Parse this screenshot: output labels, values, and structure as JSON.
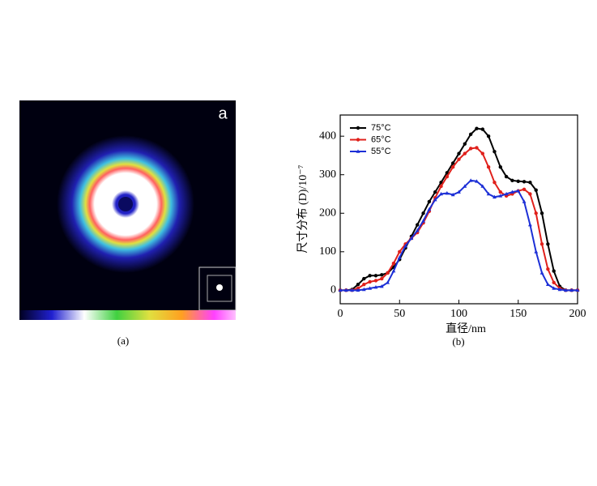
{
  "panel_a": {
    "label": "a",
    "caption": "(a)"
  },
  "chart_data": {
    "type": "line",
    "caption": "(b)",
    "x_label": "直径/nm",
    "y_label": "尺寸分布 (D)/10⁻⁷",
    "x": [
      0,
      5,
      10,
      15,
      20,
      25,
      30,
      35,
      40,
      45,
      50,
      55,
      60,
      65,
      70,
      75,
      80,
      85,
      90,
      95,
      100,
      105,
      110,
      115,
      120,
      125,
      130,
      135,
      140,
      145,
      150,
      155,
      160,
      165,
      170,
      175,
      180,
      185,
      190,
      195,
      200
    ],
    "series": [
      {
        "name": "75°C",
        "color": "#000000",
        "marker": "circle",
        "values": [
          0,
          0,
          2,
          15,
          30,
          38,
          38,
          40,
          45,
          60,
          80,
          110,
          140,
          170,
          200,
          230,
          255,
          280,
          305,
          330,
          355,
          380,
          405,
          420,
          418,
          400,
          360,
          320,
          295,
          285,
          283,
          282,
          280,
          260,
          200,
          120,
          50,
          10,
          0,
          0,
          0
        ]
      },
      {
        "name": "65°C",
        "color": "#e0201b",
        "marker": "circle",
        "values": [
          0,
          0,
          0,
          5,
          15,
          22,
          25,
          30,
          45,
          70,
          100,
          120,
          135,
          150,
          175,
          205,
          240,
          270,
          295,
          320,
          340,
          355,
          368,
          370,
          355,
          320,
          280,
          255,
          245,
          250,
          258,
          262,
          250,
          200,
          120,
          55,
          20,
          5,
          0,
          0,
          0
        ]
      },
      {
        "name": "55°C",
        "color": "#1c2fd6",
        "marker": "triangle",
        "values": [
          0,
          0,
          0,
          0,
          2,
          5,
          8,
          10,
          20,
          50,
          85,
          115,
          135,
          155,
          180,
          210,
          235,
          250,
          252,
          248,
          255,
          270,
          285,
          283,
          270,
          250,
          242,
          245,
          250,
          255,
          258,
          230,
          170,
          100,
          45,
          15,
          5,
          2,
          0,
          0,
          0
        ]
      }
    ],
    "xlim": [
      0,
      200
    ],
    "xticks": [
      0,
      50,
      100,
      150,
      200
    ],
    "ylim": [
      -35,
      455
    ],
    "yticks": [
      0,
      100,
      200,
      300,
      400
    ],
    "legend": "top-left"
  }
}
